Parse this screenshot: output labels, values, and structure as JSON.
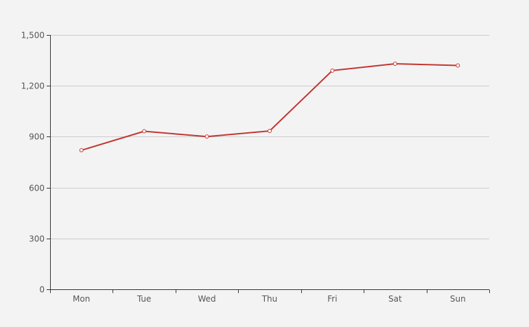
{
  "chart_data": {
    "type": "line",
    "categories": [
      "Mon",
      "Tue",
      "Wed",
      "Thu",
      "Fri",
      "Sat",
      "Sun"
    ],
    "series": [
      {
        "values": [
          820,
          932,
          901,
          934,
          1290,
          1330,
          1320
        ]
      }
    ],
    "ylim": [
      0,
      1500
    ],
    "yticks": [
      0,
      300,
      600,
      900,
      1200,
      1500
    ],
    "ytick_labels": [
      "0",
      "300",
      "600",
      "900",
      "1,200",
      "1,500"
    ],
    "grid": true,
    "colors": {
      "line": "#c23531",
      "axis": "#333333",
      "grid": "#cccccc",
      "background": "#f3f3f3"
    }
  }
}
